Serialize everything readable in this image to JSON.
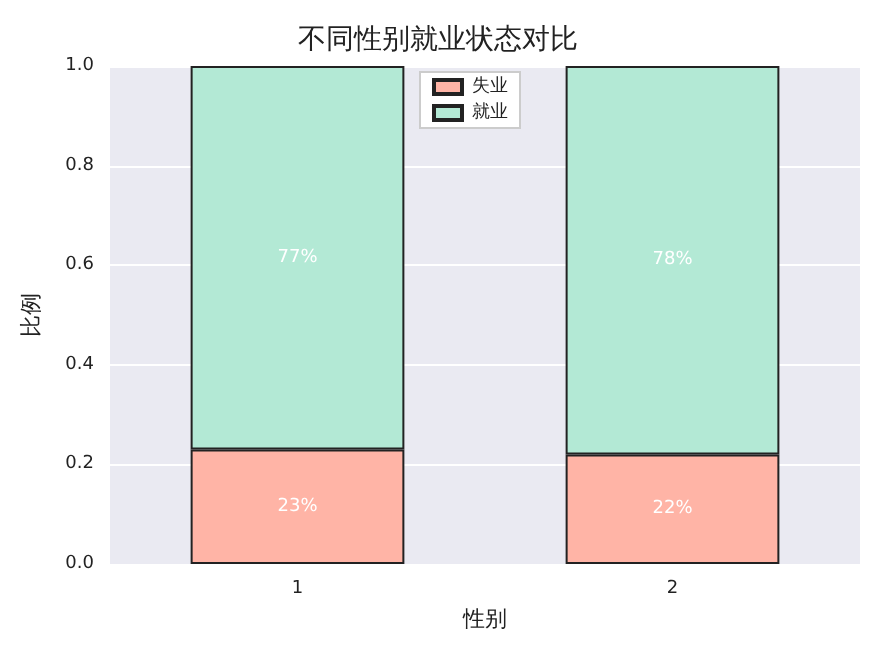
{
  "chart_data": {
    "type": "bar",
    "title": "不同性别就业状态对比",
    "xlabel": "性别",
    "ylabel": "比例",
    "categories": [
      "1",
      "2"
    ],
    "stacked": true,
    "series": [
      {
        "name": "失业",
        "color": "#ffb4a6",
        "values": [
          0.23,
          0.22
        ],
        "value_labels": [
          "23%",
          "22%"
        ]
      },
      {
        "name": "就业",
        "color": "#b3e9d5",
        "values": [
          0.77,
          0.78
        ],
        "value_labels": [
          "77%",
          "78%"
        ]
      }
    ],
    "ylim": [
      0,
      1
    ],
    "yticks": [
      {
        "value": 0,
        "label": "0.0"
      },
      {
        "value": 0.2,
        "label": "0.2"
      },
      {
        "value": 0.4,
        "label": "0.4"
      },
      {
        "value": 0.6,
        "label": "0.6"
      },
      {
        "value": 0.8,
        "label": "0.8"
      },
      {
        "value": 1,
        "label": "1.0"
      }
    ],
    "grid": "y",
    "legend": "top"
  }
}
